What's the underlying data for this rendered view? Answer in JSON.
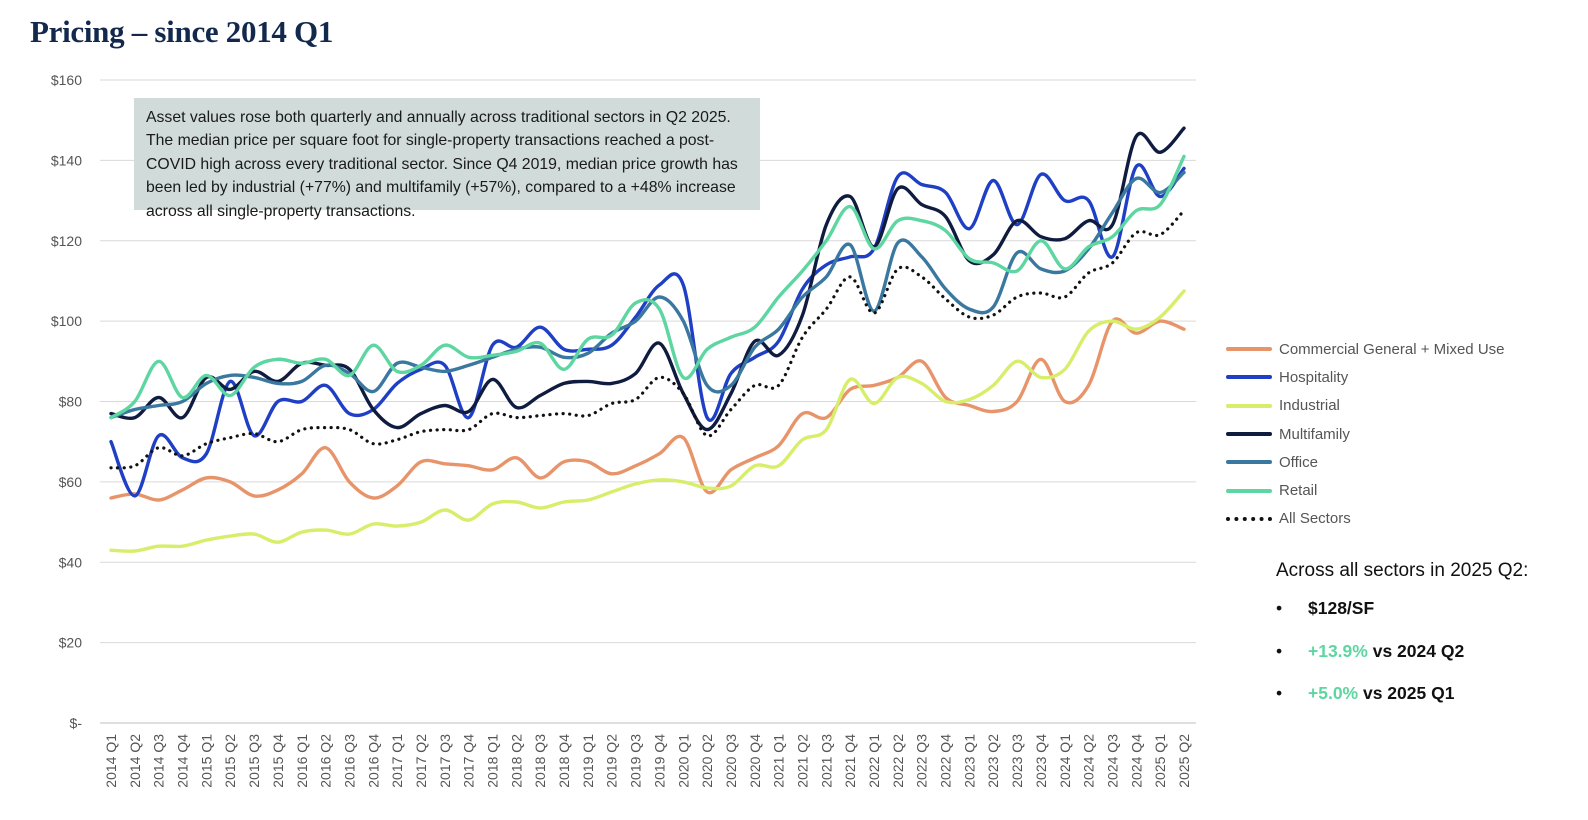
{
  "page": {
    "title": "Pricing – since 2014 Q1"
  },
  "callout": {
    "text": "Asset values rose both quarterly and annually across traditional sectors in Q2 2025. The median price per square foot for single-property transactions reached a post-COVID high across every traditional sector. Since Q4 2019, median price growth has been led by industrial (+77%) and multifamily (+57%), compared to a +48% increase across all single-property transactions."
  },
  "summary": {
    "heading": "Across all sectors in 2025 Q2:",
    "items": [
      {
        "accent": "",
        "text": "$128/SF"
      },
      {
        "accent": "+13.9%",
        "text": " vs 2024 Q2"
      },
      {
        "accent": "+5.0%",
        "text": " vs 2025 Q1"
      }
    ],
    "accent_color": "#5dd6a1"
  },
  "chart_data": {
    "type": "line",
    "title": "",
    "xlabel": "",
    "ylabel": "",
    "ylim": [
      0,
      160
    ],
    "yticks": [
      0,
      20,
      40,
      60,
      80,
      100,
      120,
      140,
      160
    ],
    "ytick_labels": [
      "$-",
      "$20",
      "$40",
      "$60",
      "$80",
      "$100",
      "$120",
      "$140",
      "$160"
    ],
    "grid": true,
    "legend_position": "right",
    "categories": [
      "2014 Q1",
      "2014 Q2",
      "2014 Q3",
      "2014 Q4",
      "2015 Q1",
      "2015 Q2",
      "2015 Q3",
      "2015 Q4",
      "2016 Q1",
      "2016 Q2",
      "2016 Q3",
      "2016 Q4",
      "2017 Q1",
      "2017 Q2",
      "2017 Q3",
      "2017 Q4",
      "2018 Q1",
      "2018 Q2",
      "2018 Q3",
      "2018 Q4",
      "2019 Q1",
      "2019 Q2",
      "2019 Q3",
      "2019 Q4",
      "2020 Q1",
      "2020 Q2",
      "2020 Q3",
      "2020 Q4",
      "2021 Q1",
      "2021 Q2",
      "2021 Q3",
      "2021 Q4",
      "2022 Q1",
      "2022 Q2",
      "2022 Q3",
      "2022 Q4",
      "2023 Q1",
      "2023 Q2",
      "2023 Q3",
      "2023 Q4",
      "2024 Q1",
      "2024 Q2",
      "2024 Q3",
      "2024 Q4",
      "2025 Q1",
      "2025 Q2"
    ],
    "series": [
      {
        "name": "Commercial General + Mixed Use",
        "color": "#e8946a",
        "style": "solid",
        "values": [
          56,
          57,
          55.5,
          58,
          61,
          60,
          56.5,
          58,
          62,
          68.5,
          60,
          56,
          59,
          65,
          64.5,
          64,
          63,
          66,
          61,
          65,
          65,
          62,
          64,
          67,
          71,
          57.5,
          63,
          66,
          69,
          77,
          76,
          83,
          84,
          86,
          90,
          81,
          79,
          77.5,
          80,
          90.5,
          80,
          84,
          100,
          97,
          100,
          98
        ]
      },
      {
        "name": "Hospitality",
        "color": "#1f3fc4",
        "style": "solid",
        "values": [
          70,
          56.5,
          71.5,
          66,
          67,
          85,
          71.5,
          80,
          80,
          84,
          77,
          78,
          84.5,
          88,
          89,
          76,
          94,
          93.5,
          98.5,
          93,
          93,
          94,
          101,
          109,
          109,
          76,
          87,
          91,
          95,
          108,
          114,
          116,
          118,
          136,
          134,
          132,
          123,
          135,
          124,
          136.5,
          130,
          130,
          116,
          138.5,
          131,
          138
        ]
      },
      {
        "name": "Industrial",
        "color": "#d6ee6a",
        "style": "solid",
        "values": [
          43,
          42.8,
          44,
          44,
          45.5,
          46.5,
          47,
          45,
          47.5,
          48,
          47,
          49.5,
          49,
          50,
          53,
          50.5,
          54.5,
          55,
          53.5,
          55,
          55.5,
          57.5,
          59.5,
          60.5,
          60,
          58.5,
          59,
          64,
          64,
          70.5,
          73,
          85.5,
          79.5,
          86,
          84.5,
          80,
          80.5,
          84,
          90,
          86,
          88,
          97.5,
          100,
          98,
          101,
          107.5
        ]
      },
      {
        "name": "Multifamily",
        "color": "#101c3f",
        "style": "solid",
        "values": [
          77,
          76,
          81,
          76,
          86,
          83,
          87.5,
          85,
          89.5,
          89,
          88,
          78,
          73.5,
          77,
          79,
          77.5,
          85.5,
          78.5,
          81.5,
          84.5,
          85,
          84.5,
          87,
          94.5,
          82,
          73,
          82,
          95,
          91.5,
          101.5,
          124,
          131,
          118.5,
          133,
          129,
          126,
          115,
          116.5,
          125,
          121,
          120.5,
          125,
          124,
          146,
          142,
          148
        ]
      },
      {
        "name": "Office",
        "color": "#3a78a0",
        "style": "solid",
        "values": [
          76,
          78,
          79,
          80,
          84.5,
          86.5,
          86,
          84.5,
          85,
          89,
          87,
          82.5,
          89.5,
          88.5,
          87.5,
          89,
          91,
          93,
          93.5,
          91,
          92,
          97,
          100,
          106,
          100,
          84,
          84,
          93.5,
          98,
          106,
          111,
          119,
          102.5,
          119.5,
          116,
          108,
          103,
          103.5,
          117,
          113,
          112.5,
          118,
          127,
          135.5,
          132,
          137
        ]
      },
      {
        "name": "Retail",
        "color": "#5dd6a1",
        "style": "solid",
        "values": [
          76,
          80,
          90,
          81,
          86.5,
          81.5,
          88.5,
          90.5,
          89.5,
          90.5,
          86.5,
          94,
          87.5,
          89,
          94,
          91,
          91.5,
          92.5,
          94.5,
          88,
          95.5,
          96.5,
          104.5,
          103,
          86,
          93,
          96,
          98.5,
          106,
          112.5,
          120,
          128.5,
          118,
          125,
          125,
          122.5,
          115.5,
          114.5,
          112.5,
          120,
          113,
          118.5,
          121,
          127.5,
          129,
          141
        ]
      },
      {
        "name": "All Sectors",
        "color": "#111111",
        "style": "dotted",
        "values": [
          63.5,
          64,
          68.5,
          66.5,
          69.5,
          71,
          72,
          70,
          73,
          73.5,
          73,
          69.5,
          70.5,
          72.5,
          73,
          73,
          77,
          76,
          76.5,
          77,
          76.5,
          79.5,
          80.5,
          86,
          82,
          71.5,
          78,
          84,
          84,
          96,
          103,
          111,
          102,
          113,
          111,
          105.5,
          101,
          101.5,
          106,
          107,
          106,
          112,
          114.5,
          122,
          121.5,
          127.5
        ]
      }
    ]
  }
}
